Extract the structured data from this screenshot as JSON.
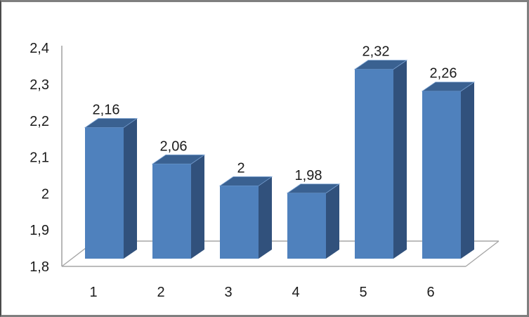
{
  "chart_data": {
    "type": "bar",
    "projection": "3d",
    "title": "",
    "xlabel": "",
    "ylabel": "",
    "categories": [
      "1",
      "2",
      "3",
      "4",
      "5",
      "6"
    ],
    "values": [
      2.16,
      2.06,
      2.0,
      1.98,
      2.32,
      2.26
    ],
    "value_labels": [
      "2,16",
      "2,06",
      "2",
      "1,98",
      "2,32",
      "2,26"
    ],
    "ylim": [
      1.8,
      2.4
    ],
    "y_tick_step": 0.1,
    "y_tick_labels": [
      "1,8",
      "1,9",
      "2",
      "2,1",
      "2,2",
      "2,3",
      "2,4"
    ],
    "decimal_separator": ",",
    "legend": "none",
    "gridlines": "none",
    "colors": {
      "bar_front": "#4f81bd",
      "bar_top": "#3a6191",
      "bar_side": "#31517c",
      "bar_edge_highlight": "#7ba3d4",
      "axis_line": "#a6a6a6",
      "floor_line": "#a6a6a6",
      "text": "#1c1c1c",
      "background": "#ffffff",
      "frame_border": "#7f7f7f"
    }
  }
}
